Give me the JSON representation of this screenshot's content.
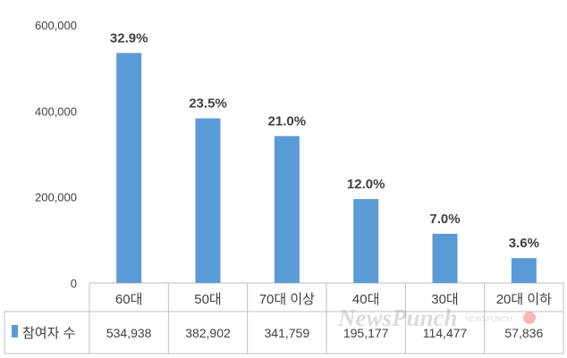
{
  "chart_data": {
    "type": "bar",
    "categories": [
      "60대",
      "50대",
      "70대 이상",
      "40대",
      "30대",
      "20대 이하"
    ],
    "series": [
      {
        "name": "참여자 수",
        "values": [
          534938,
          382902,
          341759,
          195177,
          114477,
          57836
        ],
        "value_labels": [
          "534,938",
          "382,902",
          "341,759",
          "195,177",
          "114,477",
          "57,836"
        ],
        "percent_labels": [
          "32.9%",
          "23.5%",
          "21.0%",
          "12.0%",
          "7.0%",
          "3.6%"
        ]
      }
    ],
    "ylim": [
      0,
      600000
    ],
    "yticks": [
      0,
      200000,
      400000,
      600000
    ],
    "ytick_labels": [
      "0",
      "200,000",
      "400,000",
      "600,000"
    ],
    "grid": false,
    "data_table": true,
    "legend_in_table": true,
    "color": "#5b9bd5",
    "title": "",
    "xlabel": "",
    "ylabel": ""
  },
  "watermark": {
    "text": "NewsPunch",
    "small_text": "NEWSPUNCH",
    "color": "#b0b0b0"
  }
}
